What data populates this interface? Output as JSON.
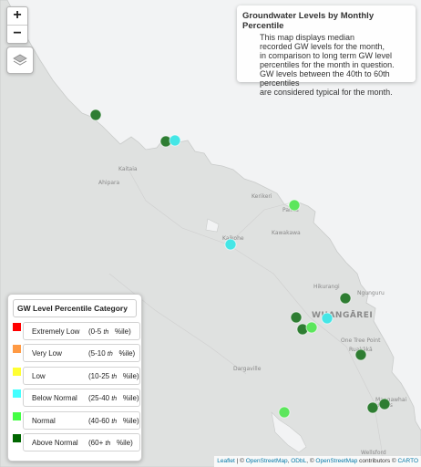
{
  "zoom": {
    "in_label": "+",
    "out_label": "−"
  },
  "layers_control": {
    "icon": "layers-icon"
  },
  "info": {
    "title": "Groundwater Levels by Monthly Percentile",
    "lines": [
      "This map displays median",
      "recorded GW levels for the month,",
      "in comparison to long term GW level",
      "percentiles for the month in question.",
      "GW levels between the 40th to 60th percentiles",
      "are considered typical for the month."
    ]
  },
  "legend": {
    "title": "GW Level Percentile Category",
    "items": [
      {
        "name": "Extremely Low",
        "range_a": "(0-5",
        "range_b": "%ile)",
        "color": "#ff0000"
      },
      {
        "name": "Very Low",
        "range_a": "(5-10",
        "range_b": "%ile)",
        "color": "#ff9a44"
      },
      {
        "name": "Low",
        "range_a": "(10-25",
        "range_b": "%ile)",
        "color": "#ffff33"
      },
      {
        "name": "Below Normal",
        "range_a": "(25-40",
        "range_b": "%ile)",
        "color": "#44ffff"
      },
      {
        "name": "Normal",
        "range_a": "(40-60",
        "range_b": "%ile)",
        "color": "#44ff44"
      },
      {
        "name": "Above Normal",
        "range_a": "(60+",
        "range_b": "%ile)",
        "color": "#006600"
      }
    ],
    "th": "th"
  },
  "places": {
    "kaitaia": "Kaitaia",
    "ahipara": "Ahipara",
    "kerikeri": "Kerikeri",
    "paihia": "Paihia",
    "kaikohe": "Kaikohe",
    "kawakawa": "Kawakawa",
    "hikurangi": "Hikurangi",
    "ngunguru": "Ngunguru",
    "whangarei": "WHANGĀREI",
    "one_tree_point": "One Tree Point",
    "ruakaka": "Ruakākā",
    "dargaville": "Dargaville",
    "mangawhai": "Mangawhai Heads",
    "wellsford": "Wellsford"
  },
  "attribution": {
    "leaflet": "Leaflet",
    "sep1": " | © ",
    "osm1": "OpenStreetMap",
    "sep2": ", ",
    "odbl": "ODbL",
    "sep3": ", © ",
    "osm2": "OpenStreetMap",
    "sep4": " contributors © ",
    "carto": "CARTO"
  },
  "sites": [
    {
      "id": "site-1",
      "category": "Above Normal",
      "color": "#2e7d32"
    },
    {
      "id": "site-2",
      "category": "Above Normal",
      "color": "#2e7d32"
    },
    {
      "id": "site-3",
      "category": "Below Normal",
      "color": "#44e6e6"
    },
    {
      "id": "site-4",
      "category": "Normal",
      "color": "#5ce65c"
    },
    {
      "id": "site-5",
      "category": "Below Normal",
      "color": "#44e6e6"
    },
    {
      "id": "site-6",
      "category": "Above Normal",
      "color": "#2e7d32"
    },
    {
      "id": "site-7",
      "category": "Above Normal",
      "color": "#2e7d32"
    },
    {
      "id": "site-8",
      "category": "Above Normal",
      "color": "#2e7d32"
    },
    {
      "id": "site-9",
      "category": "Normal",
      "color": "#5ce65c"
    },
    {
      "id": "site-10",
      "category": "Below Normal",
      "color": "#44e6e6"
    },
    {
      "id": "site-11",
      "category": "Above Normal",
      "color": "#2e7d32"
    },
    {
      "id": "site-12",
      "category": "Normal",
      "color": "#5ce65c"
    },
    {
      "id": "site-13",
      "category": "Above Normal",
      "color": "#2e7d32"
    },
    {
      "id": "site-14",
      "category": "Above Normal",
      "color": "#2e7d32"
    }
  ]
}
